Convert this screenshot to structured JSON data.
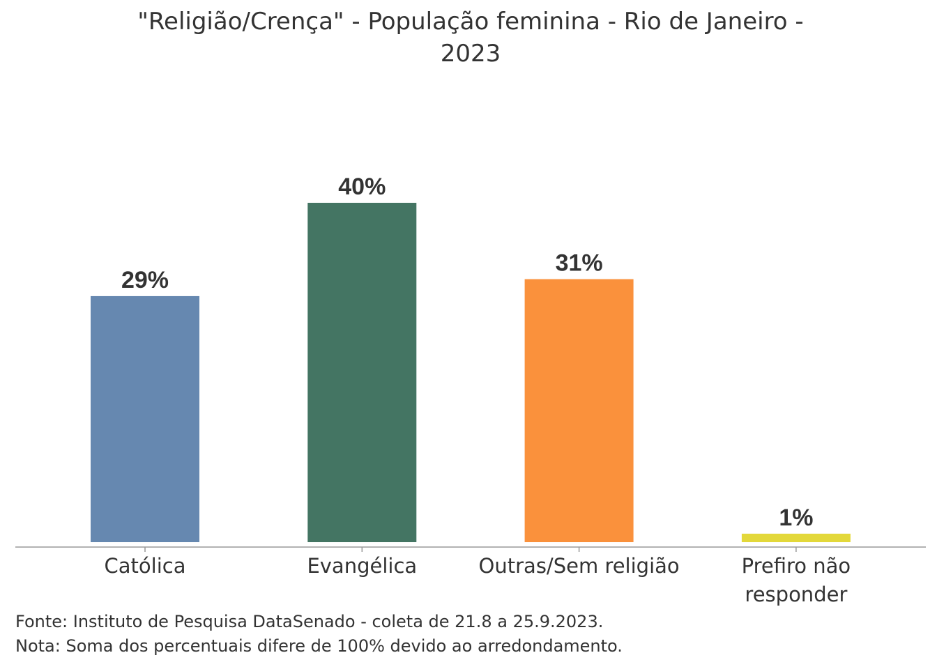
{
  "chart_data": {
    "type": "bar",
    "title": "\"Religião/Crença\" - População feminina - Rio de Janeiro - 2023",
    "categories": [
      "Católica",
      "Evangélica",
      "Outras/Sem religião",
      "Prefiro não responder"
    ],
    "category_lines": [
      [
        "Católica"
      ],
      [
        "Evangélica"
      ],
      [
        "Outras/Sem religião"
      ],
      [
        "Prefiro não",
        "responder"
      ]
    ],
    "values": [
      29,
      40,
      31,
      1
    ],
    "value_labels": [
      "29%",
      "40%",
      "31%",
      "1%"
    ],
    "colors": [
      "#6688b0",
      "#447563",
      "#fa913c",
      "#e3d83a"
    ],
    "xlabel": "",
    "ylabel": "",
    "ylim": [
      0,
      40
    ],
    "grid": false,
    "legend": "none"
  },
  "footer": {
    "source": "Fonte: Instituto de Pesquisa DataSenado - coleta de 21.8 a 25.9.2023.",
    "note": "Nota: Soma dos percentuais difere de 100% devido ao arredondamento."
  }
}
